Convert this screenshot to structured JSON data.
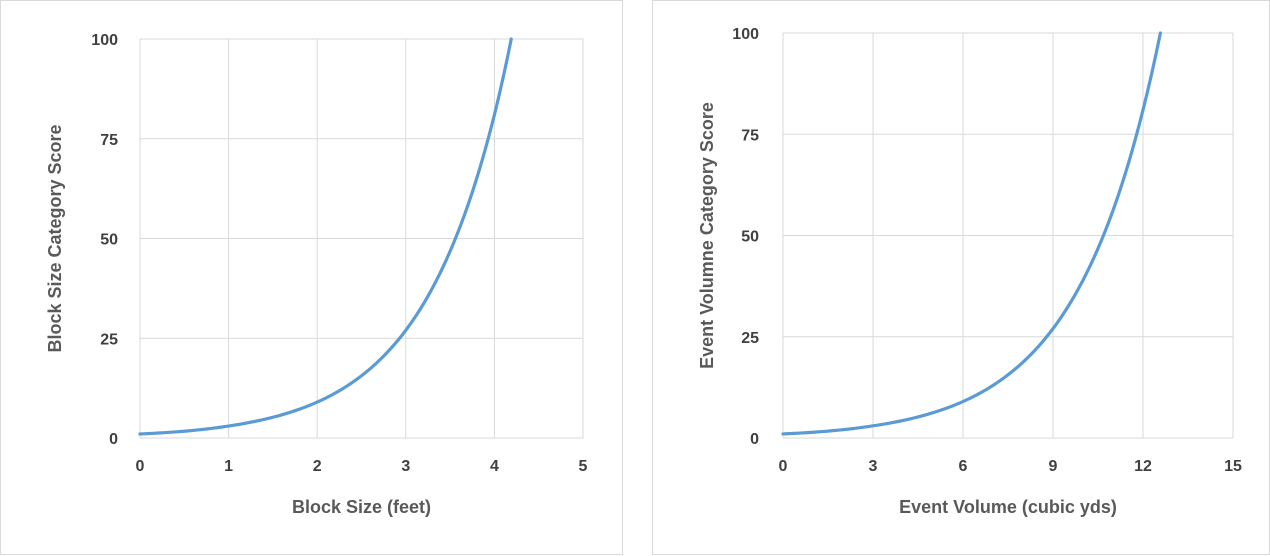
{
  "colors": {
    "series": "#5b9bd5",
    "grid": "#d9d9d9",
    "tick_text": "#404040",
    "title_text": "#595959"
  },
  "chart_data": [
    {
      "type": "line",
      "title": "",
      "xlabel": "Block Size (feet)",
      "ylabel": "Block Size Category Score",
      "xlim": [
        0,
        5
      ],
      "ylim": [
        0,
        100
      ],
      "xticks": [
        0,
        1,
        2,
        3,
        4,
        5
      ],
      "yticks": [
        0,
        25,
        50,
        75,
        100
      ],
      "grid": true,
      "legend": "none",
      "series": [
        {
          "x": [
            0,
            0.5,
            1,
            1.5,
            2,
            2.5,
            3,
            3.5,
            4,
            4.19
          ],
          "y": [
            1,
            1.7,
            3,
            5.2,
            9,
            15.6,
            27,
            46.8,
            81,
            100
          ]
        }
      ]
    },
    {
      "type": "line",
      "title": "",
      "xlabel": "Event Volume (cubic yds)",
      "ylabel": "Event Volumne Category Score",
      "xlim": [
        0,
        15
      ],
      "ylim": [
        0,
        100
      ],
      "xticks": [
        0,
        3,
        6,
        9,
        12,
        15
      ],
      "yticks": [
        0,
        25,
        50,
        75,
        100
      ],
      "grid": true,
      "legend": "none",
      "series": [
        {
          "x": [
            0,
            1.5,
            3,
            4.5,
            6,
            7.5,
            9,
            10.5,
            12,
            12.58
          ],
          "y": [
            1,
            1.7,
            3,
            5.2,
            9,
            15.6,
            27,
            46.8,
            81,
            100
          ]
        }
      ]
    }
  ]
}
